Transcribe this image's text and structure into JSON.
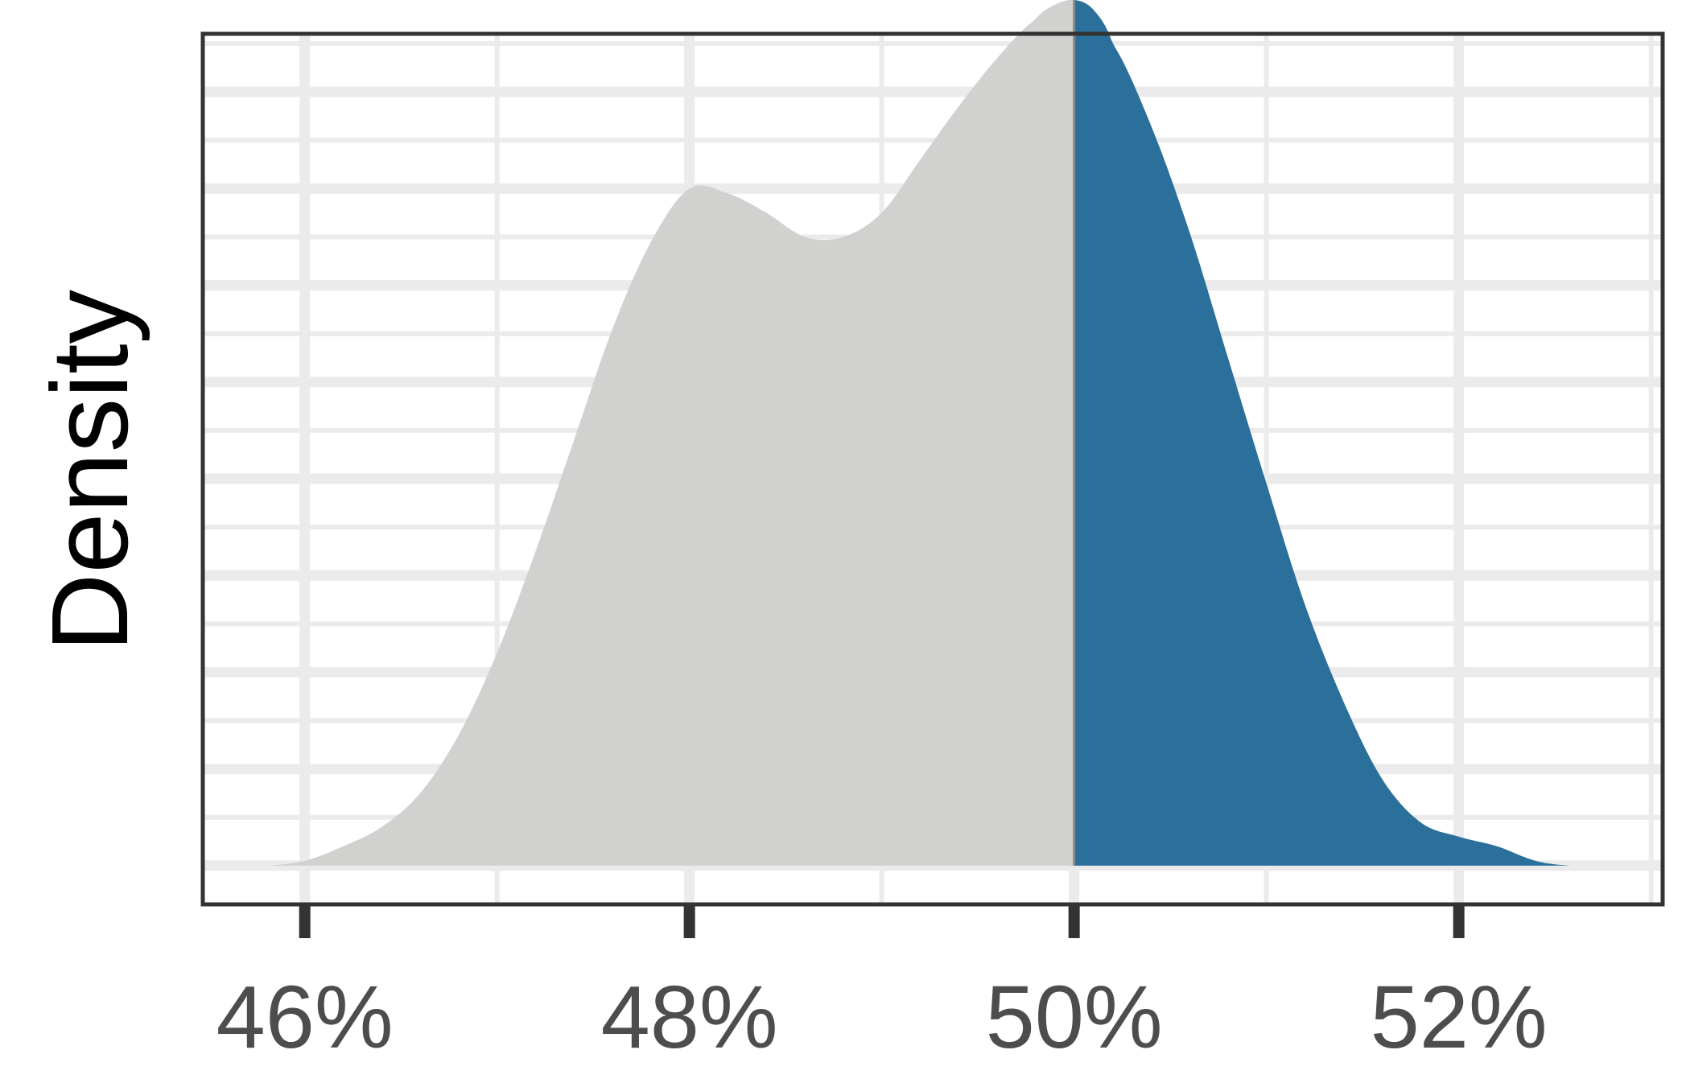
{
  "chart_data": {
    "type": "area",
    "title": "",
    "xlabel": "",
    "ylabel": "Density",
    "xlim": [
      45.47,
      53.06
    ],
    "ylim": [
      -0.008,
      0.172
    ],
    "x_ticks": [
      46,
      48,
      50,
      52
    ],
    "x_tick_labels": [
      "46%",
      "48%",
      "50%",
      "52%"
    ],
    "y_ticks_shown": false,
    "grid": true,
    "legend": "none",
    "threshold": 50,
    "colors": {
      "below_threshold": "#d1d1cf",
      "above_threshold": "#2a709b",
      "threshold_line": "#888888",
      "grid": "#ebebeb",
      "panel_border": "#333333",
      "tick_label": "#4d4d4d"
    },
    "series": [
      {
        "x": [
          45.8,
          46.0,
          46.2,
          46.4,
          46.6,
          46.8,
          47.0,
          47.2,
          47.4,
          47.6,
          47.8,
          48.0,
          48.2,
          48.4,
          48.6,
          48.8,
          49.0,
          49.2,
          49.4,
          49.6,
          49.8,
          49.9,
          50.0,
          50.1,
          50.2,
          50.4,
          50.6,
          50.8,
          51.0,
          51.2,
          51.4,
          51.6,
          51.8,
          52.0,
          52.2,
          52.4,
          52.58
        ],
        "y": [
          0.0,
          0.001,
          0.004,
          0.008,
          0.015,
          0.027,
          0.044,
          0.065,
          0.088,
          0.111,
          0.129,
          0.14,
          0.139,
          0.135,
          0.13,
          0.13,
          0.135,
          0.146,
          0.157,
          0.167,
          0.175,
          0.178,
          0.179,
          0.177,
          0.17,
          0.153,
          0.131,
          0.105,
          0.079,
          0.054,
          0.034,
          0.018,
          0.009,
          0.006,
          0.004,
          0.001,
          0.0
        ]
      }
    ]
  }
}
